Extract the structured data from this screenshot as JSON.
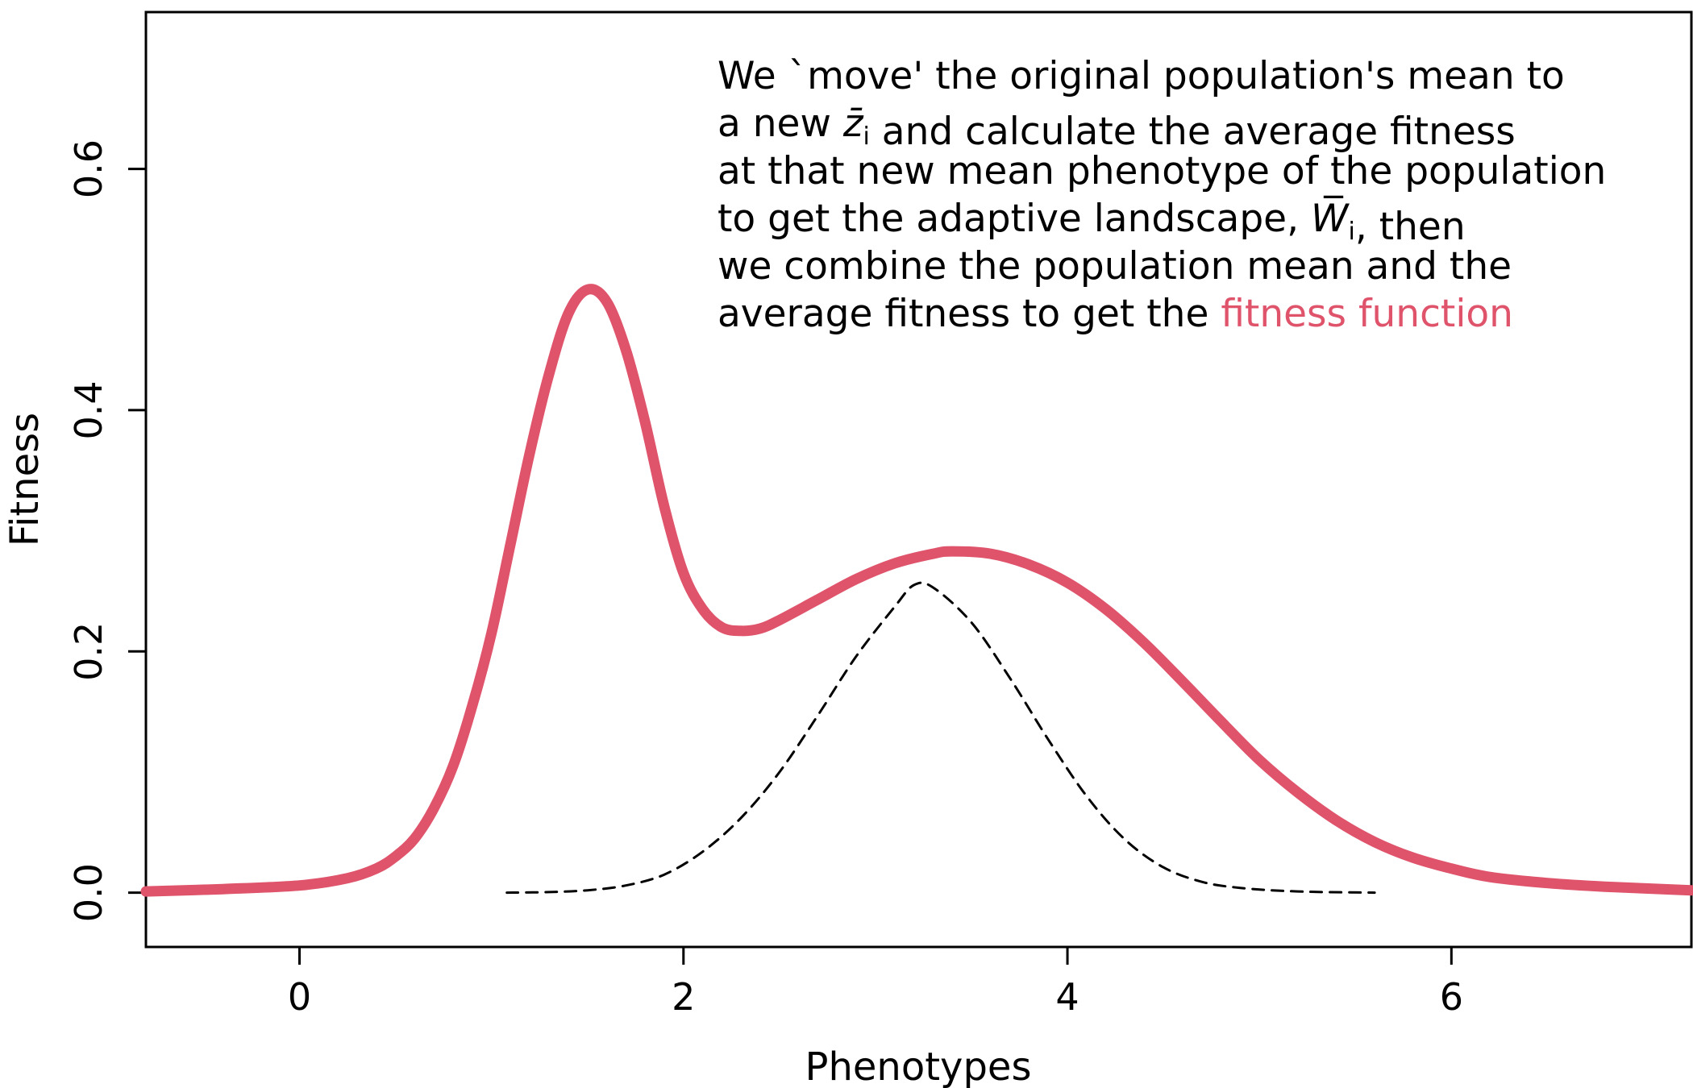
{
  "chart_data": {
    "type": "line",
    "xlabel": "Phenotypes",
    "ylabel": "Fitness",
    "xlim": [
      -0.8,
      7.25
    ],
    "ylim": [
      -0.045,
      0.73
    ],
    "xticks": [
      0,
      2,
      4,
      6
    ],
    "yticks": [
      0.0,
      0.2,
      0.4,
      0.6
    ],
    "xtick_labels": [
      "0",
      "2",
      "4",
      "6"
    ],
    "ytick_labels": [
      "0.0",
      "0.2",
      "0.4",
      "0.6"
    ],
    "grid": false,
    "series": [
      {
        "style": "solid-thick",
        "color": "#DF536B",
        "points": [
          [
            -0.8,
            0.001
          ],
          [
            -0.4,
            0.003
          ],
          [
            0.0,
            0.006
          ],
          [
            0.25,
            0.012
          ],
          [
            0.4,
            0.02
          ],
          [
            0.5,
            0.03
          ],
          [
            0.6,
            0.045
          ],
          [
            0.7,
            0.07
          ],
          [
            0.8,
            0.105
          ],
          [
            0.9,
            0.155
          ],
          [
            1.0,
            0.215
          ],
          [
            1.1,
            0.29
          ],
          [
            1.2,
            0.365
          ],
          [
            1.3,
            0.43
          ],
          [
            1.4,
            0.48
          ],
          [
            1.5,
            0.5
          ],
          [
            1.6,
            0.49
          ],
          [
            1.7,
            0.45
          ],
          [
            1.8,
            0.39
          ],
          [
            1.9,
            0.32
          ],
          [
            2.0,
            0.265
          ],
          [
            2.1,
            0.235
          ],
          [
            2.2,
            0.22
          ],
          [
            2.3,
            0.217
          ],
          [
            2.4,
            0.219
          ],
          [
            2.5,
            0.226
          ],
          [
            2.7,
            0.243
          ],
          [
            2.9,
            0.26
          ],
          [
            3.1,
            0.273
          ],
          [
            3.3,
            0.281
          ],
          [
            3.4,
            0.283
          ],
          [
            3.6,
            0.281
          ],
          [
            3.8,
            0.272
          ],
          [
            4.0,
            0.257
          ],
          [
            4.2,
            0.235
          ],
          [
            4.4,
            0.207
          ],
          [
            4.6,
            0.175
          ],
          [
            4.8,
            0.142
          ],
          [
            5.0,
            0.11
          ],
          [
            5.2,
            0.083
          ],
          [
            5.4,
            0.06
          ],
          [
            5.6,
            0.042
          ],
          [
            5.8,
            0.029
          ],
          [
            6.0,
            0.02
          ],
          [
            6.2,
            0.013
          ],
          [
            6.5,
            0.008
          ],
          [
            6.8,
            0.005
          ],
          [
            7.25,
            0.002
          ]
        ]
      },
      {
        "style": "dashed",
        "color": "#000000",
        "points": [
          [
            1.08,
            0.0
          ],
          [
            1.3,
            0.0005
          ],
          [
            1.5,
            0.002
          ],
          [
            1.7,
            0.006
          ],
          [
            1.9,
            0.015
          ],
          [
            2.1,
            0.034
          ],
          [
            2.3,
            0.062
          ],
          [
            2.5,
            0.1
          ],
          [
            2.7,
            0.147
          ],
          [
            2.9,
            0.196
          ],
          [
            3.1,
            0.237
          ],
          [
            3.2,
            0.255
          ],
          [
            3.3,
            0.253
          ],
          [
            3.5,
            0.224
          ],
          [
            3.7,
            0.178
          ],
          [
            3.9,
            0.127
          ],
          [
            4.1,
            0.08
          ],
          [
            4.3,
            0.044
          ],
          [
            4.5,
            0.021
          ],
          [
            4.7,
            0.009
          ],
          [
            4.9,
            0.004
          ],
          [
            5.2,
            0.001
          ],
          [
            5.6,
            0.0
          ]
        ]
      }
    ],
    "annotation": {
      "lines": [
        [
          "We `move' the original population's mean to"
        ],
        [
          "a new ",
          {
            "math": "z̄"
          },
          {
            "sub": "i"
          },
          " and calculate the average fitness"
        ],
        [
          "at that new mean phenotype of the population"
        ],
        [
          "to get the adaptive landscape, ",
          {
            "math": "W̅"
          },
          {
            "sub": "i"
          },
          ", then"
        ],
        [
          "we combine the population mean and the"
        ],
        [
          "average fitness to get the ",
          {
            "hl": "fitness function"
          }
        ]
      ]
    }
  }
}
